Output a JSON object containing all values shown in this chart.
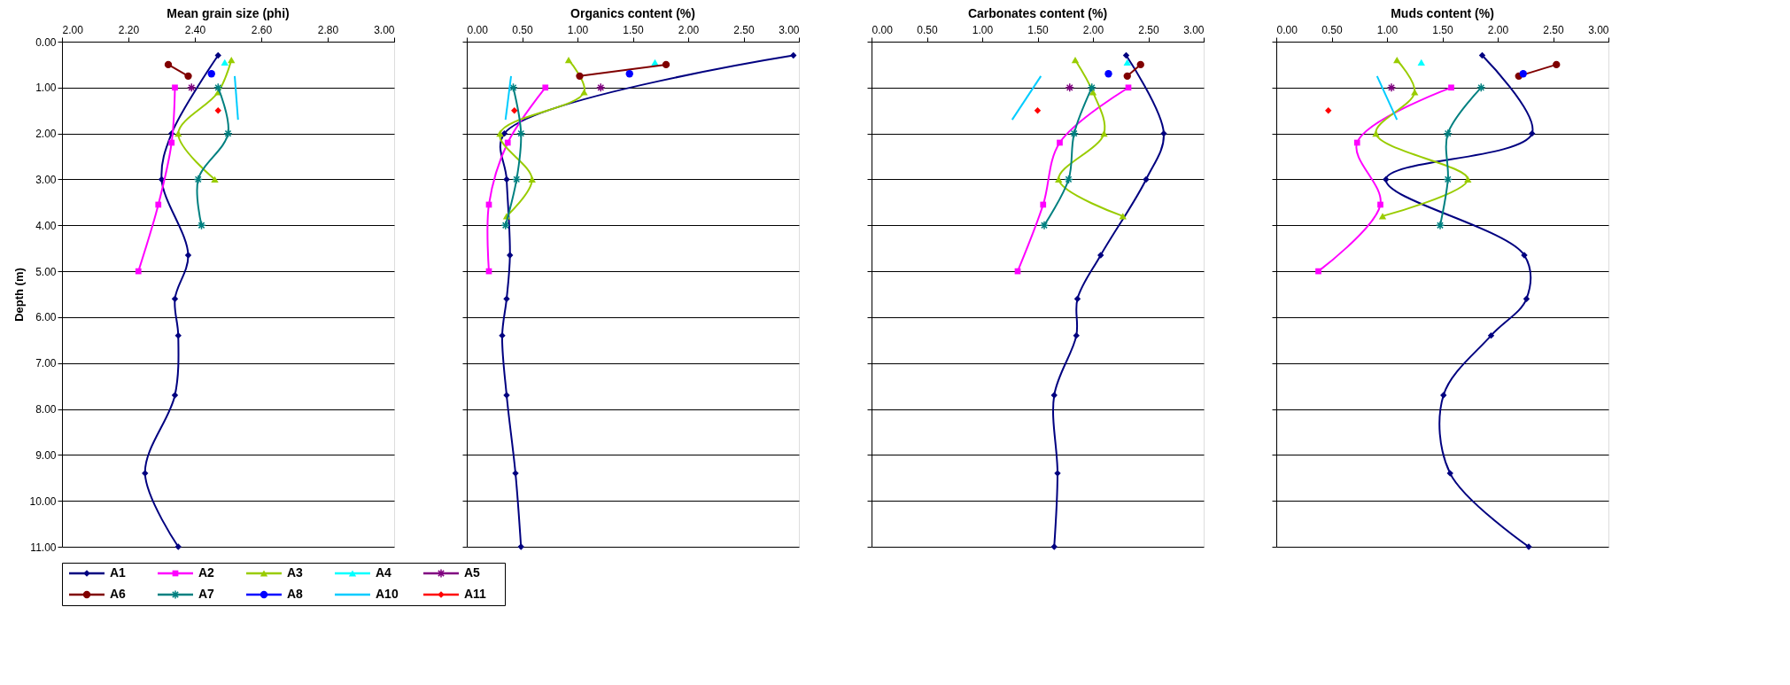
{
  "chart_data": [
    {
      "type": "line",
      "title": "Mean grain size (phi)",
      "ylabel": "Depth (m)",
      "xlim": [
        2,
        3
      ],
      "ylim": [
        11,
        0
      ],
      "xticks": [
        {
          "value": 2,
          "label": "2.00"
        },
        {
          "value": 2.2,
          "label": "2.20"
        },
        {
          "value": 2.4,
          "label": "2.40"
        },
        {
          "value": 2.6,
          "label": "2.60"
        },
        {
          "value": 2.8,
          "label": "2.80"
        },
        {
          "value": 3,
          "label": "3.00"
        }
      ],
      "yticks": [
        {
          "value": 0,
          "label": "0.00"
        },
        {
          "value": 1,
          "label": "1.00"
        },
        {
          "value": 2,
          "label": "2.00"
        },
        {
          "value": 3,
          "label": "3.00"
        },
        {
          "value": 4,
          "label": "4.00"
        },
        {
          "value": 5,
          "label": "5.00"
        },
        {
          "value": 6,
          "label": "6.00"
        },
        {
          "value": 7,
          "label": "7.00"
        },
        {
          "value": 8,
          "label": "8.00"
        },
        {
          "value": 9,
          "label": "9.00"
        },
        {
          "value": 10,
          "label": "10.00"
        },
        {
          "value": 11,
          "label": "11.00"
        }
      ],
      "grid": "y",
      "legend": "bottom",
      "line_style": "solid",
      "series": [
        {
          "name": "A1",
          "color": "#000080",
          "marker": "diamond",
          "x": [
            2.47,
            2.33,
            2.3,
            2.38,
            2.34,
            2.35,
            2.34,
            2.25,
            2.35
          ],
          "values": [
            0.3,
            2.0,
            3.0,
            4.65,
            5.6,
            6.4,
            7.7,
            9.4,
            11.0
          ]
        },
        {
          "name": "A2",
          "color": "#ff00ff",
          "marker": "square",
          "x": [
            2.34,
            2.33,
            2.29,
            2.23
          ],
          "values": [
            1.0,
            2.2,
            3.55,
            5.0
          ]
        },
        {
          "name": "A3",
          "color": "#99cc00",
          "marker": "triangle",
          "x": [
            2.51,
            2.47,
            2.35,
            2.46
          ],
          "values": [
            0.4,
            1.1,
            2.0,
            3.0
          ]
        },
        {
          "name": "A4",
          "color": "#00ffff",
          "marker": "triangle",
          "x": [
            2.49
          ],
          "values": [
            0.45
          ]
        },
        {
          "name": "A5",
          "color": "#800080",
          "marker": "cross",
          "x": [
            2.39
          ],
          "values": [
            1.0
          ]
        },
        {
          "name": "A6",
          "color": "#800000",
          "marker": "circle",
          "x": [
            2.32,
            2.38
          ],
          "values": [
            0.5,
            0.75
          ]
        },
        {
          "name": "A7",
          "color": "#008080",
          "marker": "cross",
          "x": [
            2.47,
            2.5,
            2.41,
            2.42
          ],
          "values": [
            1.0,
            2.0,
            3.0,
            4.0
          ]
        },
        {
          "name": "A8",
          "color": "#0000ff",
          "marker": "circle",
          "x": [
            2.45
          ],
          "values": [
            0.7
          ]
        },
        {
          "name": "A10",
          "color": "#00ccff",
          "marker": "none",
          "x": [
            2.52,
            2.53
          ],
          "values": [
            0.75,
            1.7
          ]
        },
        {
          "name": "A11",
          "color": "#ff0000",
          "marker": "diamond",
          "x": [
            2.47
          ],
          "values": [
            1.5
          ]
        }
      ]
    },
    {
      "type": "line",
      "title": "Organics content (%)",
      "xlim": [
        0,
        3
      ],
      "ylim": [
        11,
        0
      ],
      "tick_labels": "x",
      "xticks": [
        {
          "value": 0,
          "label": "0.00"
        },
        {
          "value": 0.5,
          "label": "0.50"
        },
        {
          "value": 1,
          "label": "1.00"
        },
        {
          "value": 1.5,
          "label": "1.50"
        },
        {
          "value": 2,
          "label": "2.00"
        },
        {
          "value": 2.5,
          "label": "2.50"
        },
        {
          "value": 3,
          "label": "3.00"
        }
      ],
      "yticks": [
        0,
        1,
        2,
        3,
        4,
        5,
        6,
        7,
        8,
        9,
        10,
        11
      ],
      "grid": "y",
      "legend": false,
      "line_style": "solid",
      "series": [
        {
          "color": "#000080",
          "marker": "diamond",
          "x": [
            2.95,
            0.34,
            0.36,
            0.39,
            0.36,
            0.32,
            0.36,
            0.44,
            0.49
          ],
          "values": [
            0.3,
            2.0,
            3.0,
            4.65,
            5.6,
            6.4,
            7.7,
            9.4,
            11.0
          ]
        },
        {
          "color": "#ff00ff",
          "marker": "square",
          "x": [
            0.71,
            0.37,
            0.2,
            0.2
          ],
          "values": [
            1.0,
            2.2,
            3.55,
            5.0
          ]
        },
        {
          "color": "#99cc00",
          "marker": "triangle",
          "x": [
            0.92,
            1.06,
            0.3,
            0.59,
            0.36
          ],
          "values": [
            0.4,
            1.1,
            2.0,
            3.0,
            3.8
          ]
        },
        {
          "color": "#00ffff",
          "marker": "triangle",
          "x": [
            1.7
          ],
          "values": [
            0.45
          ]
        },
        {
          "color": "#800080",
          "marker": "cross",
          "x": [
            1.21
          ],
          "values": [
            1.0
          ]
        },
        {
          "color": "#800000",
          "marker": "circle",
          "x": [
            1.8,
            1.02
          ],
          "values": [
            0.5,
            0.75
          ]
        },
        {
          "color": "#008080",
          "marker": "cross",
          "x": [
            0.42,
            0.49,
            0.45,
            0.35
          ],
          "values": [
            1.0,
            2.0,
            3.0,
            4.0
          ]
        },
        {
          "color": "#0000ff",
          "marker": "circle",
          "x": [
            1.47
          ],
          "values": [
            0.7
          ]
        },
        {
          "color": "#00ccff",
          "marker": "none",
          "x": [
            0.4,
            0.35
          ],
          "values": [
            0.75,
            1.7
          ]
        },
        {
          "color": "#ff0000",
          "marker": "diamond",
          "x": [
            0.43
          ],
          "values": [
            1.5
          ]
        }
      ]
    },
    {
      "type": "line",
      "title": "Carbonates content (%)",
      "xlim": [
        0,
        3
      ],
      "ylim": [
        11,
        0
      ],
      "tick_labels": "x",
      "xticks": [
        {
          "value": 0,
          "label": "0.00"
        },
        {
          "value": 0.5,
          "label": "0.50"
        },
        {
          "value": 1,
          "label": "1.00"
        },
        {
          "value": 1.5,
          "label": "1.50"
        },
        {
          "value": 2,
          "label": "2.00"
        },
        {
          "value": 2.5,
          "label": "2.50"
        },
        {
          "value": 3,
          "label": "3.00"
        }
      ],
      "yticks": [
        0,
        1,
        2,
        3,
        4,
        5,
        6,
        7,
        8,
        9,
        10,
        11
      ],
      "grid": "y",
      "legend": false,
      "line_style": "solid",
      "series": [
        {
          "color": "#000080",
          "marker": "diamond",
          "x": [
            2.3,
            2.64,
            2.48,
            2.07,
            1.86,
            1.85,
            1.65,
            1.68,
            1.65
          ],
          "values": [
            0.3,
            2.0,
            3.0,
            4.65,
            5.6,
            6.4,
            7.7,
            9.4,
            11.0
          ]
        },
        {
          "color": "#ff00ff",
          "marker": "square",
          "x": [
            2.32,
            1.7,
            1.55,
            1.32
          ],
          "values": [
            1.0,
            2.2,
            3.55,
            5.0
          ]
        },
        {
          "color": "#99cc00",
          "marker": "triangle",
          "x": [
            1.84,
            2.0,
            2.1,
            1.69,
            2.27
          ],
          "values": [
            0.4,
            1.1,
            2.0,
            3.0,
            3.8
          ]
        },
        {
          "color": "#00ffff",
          "marker": "triangle",
          "x": [
            2.31
          ],
          "values": [
            0.45
          ]
        },
        {
          "color": "#800080",
          "marker": "cross",
          "x": [
            1.79
          ],
          "values": [
            1.0
          ]
        },
        {
          "color": "#800000",
          "marker": "circle",
          "x": [
            2.43,
            2.31
          ],
          "values": [
            0.5,
            0.75
          ]
        },
        {
          "color": "#008080",
          "marker": "cross",
          "x": [
            1.99,
            1.83,
            1.78,
            1.56
          ],
          "values": [
            1.0,
            2.0,
            3.0,
            4.0
          ]
        },
        {
          "color": "#0000ff",
          "marker": "circle",
          "x": [
            2.14
          ],
          "values": [
            0.7
          ]
        },
        {
          "color": "#00ccff",
          "marker": "none",
          "x": [
            1.53,
            1.27
          ],
          "values": [
            0.75,
            1.7
          ]
        },
        {
          "color": "#ff0000",
          "marker": "diamond",
          "x": [
            1.5
          ],
          "values": [
            1.5
          ]
        }
      ]
    },
    {
      "type": "line",
      "title": "Muds content (%)",
      "xlim": [
        0,
        3
      ],
      "ylim": [
        11,
        0
      ],
      "tick_labels": "x",
      "xticks": [
        {
          "value": 0,
          "label": "0.00"
        },
        {
          "value": 0.5,
          "label": "0.50"
        },
        {
          "value": 1,
          "label": "1.00"
        },
        {
          "value": 1.5,
          "label": "1.50"
        },
        {
          "value": 2,
          "label": "2.00"
        },
        {
          "value": 2.5,
          "label": "2.50"
        },
        {
          "value": 3,
          "label": "3.00"
        }
      ],
      "yticks": [
        0,
        1,
        2,
        3,
        4,
        5,
        6,
        7,
        8,
        9,
        10,
        11
      ],
      "grid": "y",
      "legend": false,
      "line_style": "solid",
      "series": [
        {
          "color": "#000080",
          "marker": "diamond",
          "x": [
            1.86,
            2.31,
            0.99,
            2.24,
            2.26,
            1.94,
            1.51,
            1.57,
            2.28
          ],
          "values": [
            0.3,
            2.0,
            3.0,
            4.65,
            5.6,
            6.4,
            7.7,
            9.4,
            11.0
          ]
        },
        {
          "color": "#ff00ff",
          "marker": "square",
          "x": [
            1.58,
            0.73,
            0.94,
            0.38
          ],
          "values": [
            1.0,
            2.2,
            3.55,
            5.0
          ]
        },
        {
          "color": "#99cc00",
          "marker": "triangle",
          "x": [
            1.09,
            1.25,
            0.9,
            1.73,
            0.96
          ],
          "values": [
            0.4,
            1.1,
            2.0,
            3.0,
            3.8
          ]
        },
        {
          "color": "#00ffff",
          "marker": "triangle",
          "x": [
            1.31
          ],
          "values": [
            0.45
          ]
        },
        {
          "color": "#800080",
          "marker": "cross",
          "x": [
            1.04
          ],
          "values": [
            1.0
          ]
        },
        {
          "color": "#800000",
          "marker": "circle",
          "x": [
            2.53,
            2.19
          ],
          "values": [
            0.5,
            0.75
          ]
        },
        {
          "color": "#008080",
          "marker": "cross",
          "x": [
            1.85,
            1.55,
            1.55,
            1.48
          ],
          "values": [
            1.0,
            2.0,
            3.0,
            4.0
          ]
        },
        {
          "color": "#0000ff",
          "marker": "circle",
          "x": [
            2.23
          ],
          "values": [
            0.7
          ]
        },
        {
          "color": "#00ccff",
          "marker": "none",
          "x": [
            0.91,
            1.09
          ],
          "values": [
            0.75,
            1.7
          ]
        },
        {
          "color": "#ff0000",
          "marker": "diamond",
          "x": [
            0.47
          ],
          "values": [
            1.5
          ]
        }
      ]
    }
  ]
}
